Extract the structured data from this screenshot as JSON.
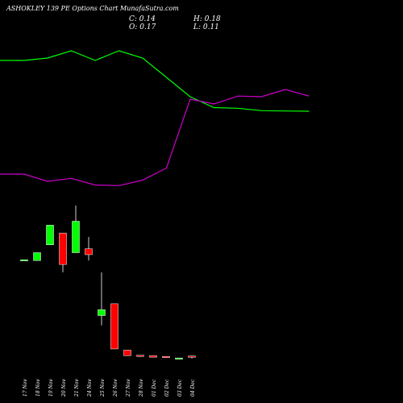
{
  "header": {
    "title": "ASHOKLEY 139 PE Options  Chart MunafaSutra.com",
    "close_label": "C: 0.14",
    "high_label": "H: 0.18",
    "open_label": "O: 0.17",
    "low_label": "L: 0.11"
  },
  "chart_data": {
    "type": "candlestick",
    "categories": [
      "17 Nov",
      "18 Nov",
      "19 Nov",
      "20 Nov",
      "21 Nov",
      "24 Nov",
      "25 Nov",
      "26 Nov",
      "27 Nov",
      "28 Nov",
      "01 Dec",
      "02 Dec",
      "03 Dec",
      "04 Dec"
    ],
    "candles": [
      {
        "open": 2.62,
        "high": 2.62,
        "low": 2.61,
        "close": 2.62,
        "color": "#00ff00"
      },
      {
        "open": 2.6,
        "high": 2.8,
        "low": 2.6,
        "close": 2.8,
        "color": "#00ff00"
      },
      {
        "open": 3.0,
        "high": 3.5,
        "low": 3.0,
        "close": 3.5,
        "color": "#00ff00"
      },
      {
        "open": 3.3,
        "high": 3.3,
        "low": 2.3,
        "close": 2.5,
        "color": "#ff0000"
      },
      {
        "open": 2.8,
        "high": 4.0,
        "low": 2.8,
        "close": 3.6,
        "color": "#00ff00"
      },
      {
        "open": 2.9,
        "high": 3.2,
        "low": 2.6,
        "close": 2.75,
        "color": "#ff0000"
      },
      {
        "open": 1.2,
        "high": 2.3,
        "low": 0.95,
        "close": 1.35,
        "color": "#00ff00"
      },
      {
        "open": 1.5,
        "high": 1.5,
        "low": 0.35,
        "close": 0.35,
        "color": "#ff0000"
      },
      {
        "open": 0.32,
        "high": 0.32,
        "low": 0.18,
        "close": 0.18,
        "color": "#ff0000"
      },
      {
        "open": 0.19,
        "high": 0.19,
        "low": 0.15,
        "close": 0.16,
        "color": "#ff0000"
      },
      {
        "open": 0.18,
        "high": 0.18,
        "low": 0.14,
        "close": 0.14,
        "color": "#ff0000"
      },
      {
        "open": 0.16,
        "high": 0.16,
        "low": 0.12,
        "close": 0.13,
        "color": "#ff0000"
      },
      {
        "open": 0.12,
        "high": 0.12,
        "low": 0.11,
        "close": 0.12,
        "color": "#00ff00"
      },
      {
        "open": 0.17,
        "high": 0.18,
        "low": 0.11,
        "close": 0.14,
        "color": "#ff0000"
      }
    ],
    "overlay_lines": [
      {
        "color": "#00ff00",
        "values": [
          10.0,
          10.0,
          10.2,
          10.8,
          10.0,
          10.8,
          10.2,
          8.6,
          7.0,
          6.1,
          6.05,
          5.85,
          5.82,
          5.8
        ]
      },
      {
        "color": "#cc00cc",
        "values": [
          0.6,
          0.6,
          0.0,
          0.25,
          -0.3,
          -0.35,
          0.1,
          1.1,
          6.8,
          6.4,
          7.05,
          7.0,
          7.6,
          7.05
        ]
      }
    ],
    "ylim": [
      0,
      4
    ],
    "grid": false
  }
}
